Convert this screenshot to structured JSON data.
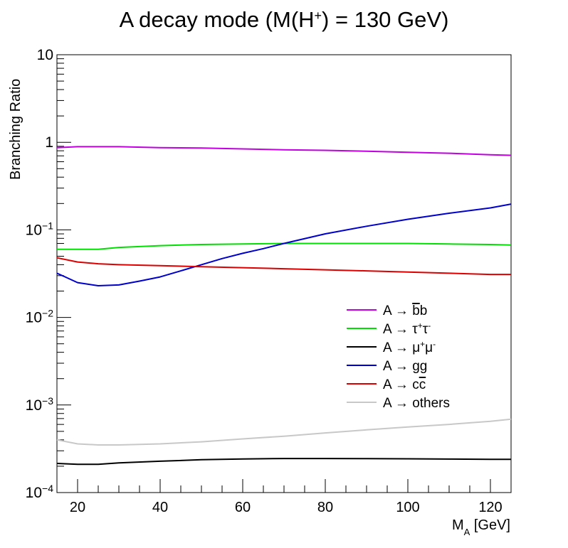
{
  "chart_data": {
    "type": "line",
    "title": "A decay mode (M(H",
    "title_sup": "+",
    "title_tail": ") = 130 GeV)",
    "xlabel_main": "M",
    "xlabel_sub": "A",
    "xlabel_tail": " [GeV]",
    "ylabel": "Branching Ratio",
    "xlim": [
      15,
      125
    ],
    "ylim": [
      0.0001,
      10
    ],
    "y_scale": "log",
    "grid": false,
    "legend_position": "lower-right",
    "x_ticks": [
      20,
      40,
      60,
      80,
      100,
      120
    ],
    "x_tick_labels": [
      "20",
      "40",
      "60",
      "80",
      "100",
      "120"
    ],
    "y_ticks": [
      {
        "value": 0.0001,
        "base": "10",
        "exp": "−4"
      },
      {
        "value": 0.001,
        "base": "10",
        "exp": "−3"
      },
      {
        "value": 0.01,
        "base": "10",
        "exp": "−2"
      },
      {
        "value": 0.1,
        "base": "10",
        "exp": "−1"
      },
      {
        "value": 1,
        "base": "1",
        "exp": ""
      },
      {
        "value": 10,
        "base": "10",
        "exp": ""
      }
    ],
    "series": [
      {
        "key": "bb",
        "color": "#c000e0",
        "legend": {
          "prefix": "A → ",
          "parts": [
            {
              "t": "b",
              "over": true
            },
            {
              "t": "b"
            }
          ]
        },
        "x": [
          15,
          20,
          30,
          40,
          50,
          60,
          70,
          80,
          90,
          100,
          110,
          120,
          125
        ],
        "y": [
          0.87,
          0.89,
          0.89,
          0.87,
          0.86,
          0.84,
          0.82,
          0.81,
          0.79,
          0.77,
          0.75,
          0.72,
          0.71
        ]
      },
      {
        "key": "tautau",
        "color": "#00e000",
        "legend": {
          "prefix": "A → ",
          "parts": [
            {
              "t": "τ"
            },
            {
              "t": "+",
              "sup": true
            },
            {
              "t": "τ"
            },
            {
              "t": "-",
              "sup": true
            }
          ]
        },
        "x": [
          15,
          20,
          25,
          30,
          40,
          50,
          60,
          70,
          80,
          90,
          100,
          110,
          120,
          125
        ],
        "y": [
          0.06,
          0.06,
          0.06,
          0.063,
          0.066,
          0.068,
          0.069,
          0.07,
          0.07,
          0.07,
          0.07,
          0.069,
          0.068,
          0.067
        ]
      },
      {
        "key": "mumu",
        "color": "#000000",
        "legend": {
          "prefix": "A → ",
          "parts": [
            {
              "t": "μ"
            },
            {
              "t": "+",
              "sup": true
            },
            {
              "t": "μ"
            },
            {
              "t": "-",
              "sup": true
            }
          ]
        },
        "x": [
          15,
          20,
          25,
          30,
          40,
          50,
          60,
          70,
          80,
          90,
          100,
          110,
          120,
          125
        ],
        "y": [
          0.000215,
          0.00021,
          0.00021,
          0.000218,
          0.000228,
          0.000237,
          0.000242,
          0.000245,
          0.000245,
          0.000244,
          0.000243,
          0.000241,
          0.00024,
          0.00024
        ]
      },
      {
        "key": "gg",
        "color": "#0000cc",
        "legend": {
          "prefix": "A → ",
          "parts": [
            {
              "t": "gg"
            }
          ]
        },
        "x": [
          15,
          17,
          20,
          25,
          30,
          35,
          40,
          45,
          50,
          55,
          60,
          65,
          70,
          80,
          90,
          100,
          110,
          120,
          125
        ],
        "y": [
          0.032,
          0.029,
          0.025,
          0.023,
          0.0235,
          0.026,
          0.029,
          0.034,
          0.04,
          0.047,
          0.054,
          0.061,
          0.07,
          0.09,
          0.11,
          0.132,
          0.155,
          0.178,
          0.197
        ]
      },
      {
        "key": "cc",
        "color": "#dd0000",
        "legend": {
          "prefix": "A → ",
          "parts": [
            {
              "t": "c"
            },
            {
              "t": "c",
              "over": true
            }
          ]
        },
        "x": [
          15,
          20,
          25,
          30,
          40,
          50,
          60,
          70,
          80,
          90,
          100,
          110,
          120,
          125
        ],
        "y": [
          0.048,
          0.043,
          0.041,
          0.04,
          0.039,
          0.038,
          0.037,
          0.036,
          0.035,
          0.034,
          0.033,
          0.032,
          0.031,
          0.031
        ]
      },
      {
        "key": "others",
        "color": "#c8c8c8",
        "legend": {
          "prefix": "A → ",
          "parts": [
            {
              "t": "others"
            }
          ]
        },
        "x": [
          15,
          20,
          25,
          30,
          40,
          50,
          60,
          70,
          80,
          90,
          100,
          110,
          120,
          125
        ],
        "y": [
          0.0004,
          0.00036,
          0.00035,
          0.00035,
          0.00036,
          0.00038,
          0.00041,
          0.00044,
          0.00048,
          0.00052,
          0.00056,
          0.0006,
          0.00065,
          0.00069
        ]
      }
    ]
  }
}
